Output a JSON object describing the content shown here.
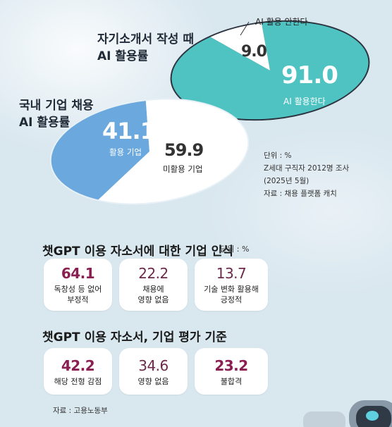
{
  "chart_data": [
    {
      "type": "pie",
      "title": "자기소개서 작성 때\nAI 활용률",
      "title_lines": [
        "자기소개서 작성 때",
        "AI 활용률"
      ],
      "slices": [
        {
          "label": "AI 활용한다",
          "value": 91.0,
          "value_text": "91.0",
          "color": "#4fc3c2"
        },
        {
          "label": "AI 활용 안한다",
          "value": 9.0,
          "value_text": "9.0",
          "color": "#ffffff"
        }
      ]
    },
    {
      "type": "pie",
      "title": "국내 기업 채용\nAI 활용률",
      "title_lines": [
        "국내 기업 채용",
        "AI 활용률"
      ],
      "slices": [
        {
          "label": "활용 기업",
          "value": 41.1,
          "value_text": "41.1",
          "color": "#6aa8dd"
        },
        {
          "label": "미활용 기업",
          "value": 59.9,
          "value_text": "59.9",
          "color": "#ffffff"
        }
      ]
    },
    {
      "type": "table",
      "title": "챗GPT 이용 자소서에 대한 기업 인식",
      "unit": "단위 : %",
      "items": [
        {
          "value": 64.1,
          "value_text": "64.1",
          "label_lines": [
            "독창성 등 없어",
            "부정적"
          ],
          "emphasis": true
        },
        {
          "value": 22.2,
          "value_text": "22.2",
          "label_lines": [
            "채용에",
            "영향 없음"
          ],
          "emphasis": false
        },
        {
          "value": 13.7,
          "value_text": "13.7",
          "label_lines": [
            "기술 변화 활용해",
            "긍정적"
          ],
          "emphasis": false
        }
      ]
    },
    {
      "type": "table",
      "title": "챗GPT 이용 자소서, 기업 평가 기준",
      "items": [
        {
          "value": 42.2,
          "value_text": "42.2",
          "label_lines": [
            "해당 전형 감점"
          ],
          "emphasis": true
        },
        {
          "value": 34.6,
          "value_text": "34.6",
          "label_lines": [
            "영향 없음"
          ],
          "emphasis": false
        },
        {
          "value": 23.2,
          "value_text": "23.2",
          "label_lines": [
            "불합격"
          ],
          "emphasis": true
        }
      ]
    }
  ],
  "notes": {
    "unit": "단위 : %",
    "survey": "Z세대 구직자 2012명 조사",
    "date": "(2025년 5월)",
    "source": "자료 : 채용 플랫폼 캐치"
  },
  "footer_source": "자료 : 고용노동부",
  "colors": {
    "background": "#d9e7ef",
    "teal": "#4fc3c2",
    "blue": "#6aa8dd",
    "accent": "#8a1f52",
    "value_muted": "#6b2a49"
  }
}
